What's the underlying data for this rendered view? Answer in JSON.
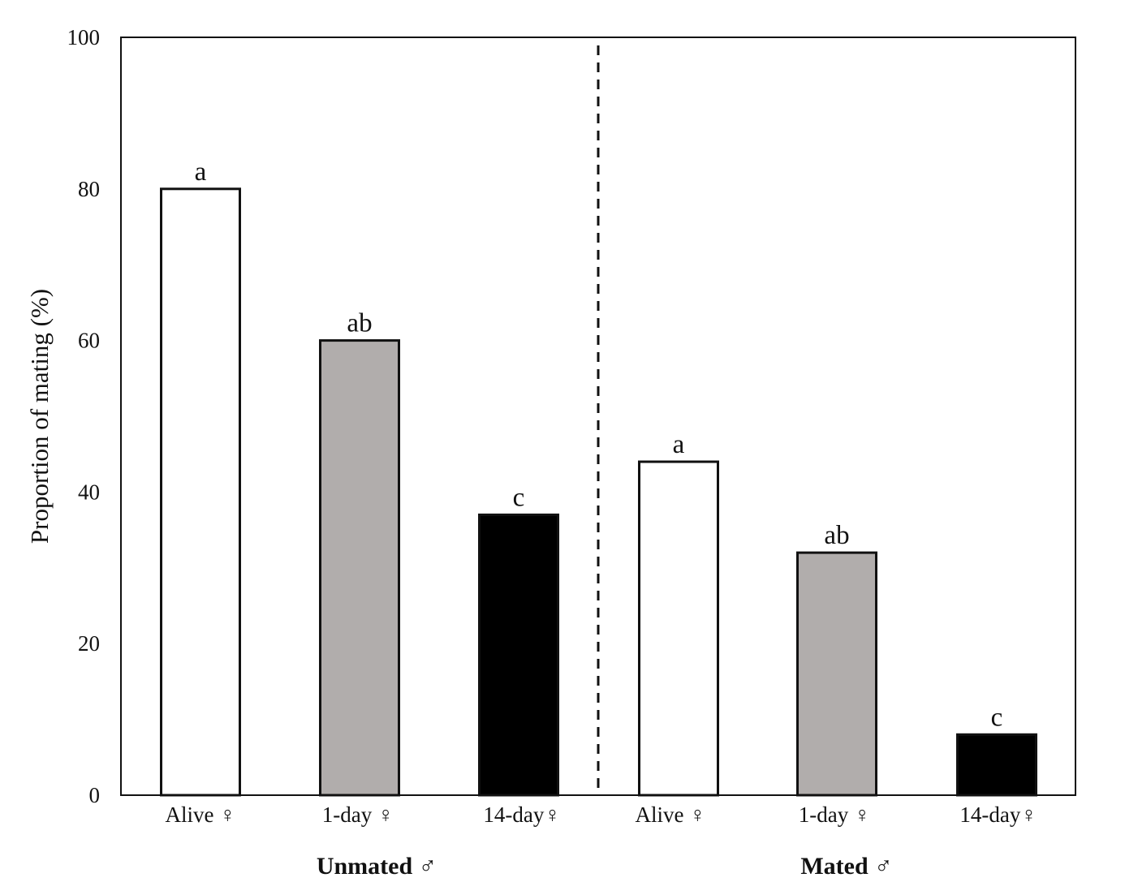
{
  "chart_data": {
    "type": "bar",
    "title": "",
    "xlabel": "",
    "ylabel": "Proportion of mating (%)",
    "ylim": [
      0,
      100
    ],
    "yticks": [
      0,
      20,
      40,
      60,
      80,
      100
    ],
    "grid": false,
    "groups": [
      {
        "name": "Unmated ♂",
        "categories": [
          "Alive ♀",
          "1-day ♀",
          "14-day♀"
        ],
        "values": [
          80,
          60,
          37
        ],
        "significance": [
          "a",
          "ab",
          "c"
        ],
        "colors": [
          "#ffffff",
          "#b1adac",
          "#000000"
        ]
      },
      {
        "name": "Mated ♂",
        "categories": [
          "Alive ♀",
          "1-day ♀",
          "14-day♀"
        ],
        "values": [
          44,
          32,
          8
        ],
        "significance": [
          "a",
          "ab",
          "c"
        ],
        "colors": [
          "#ffffff",
          "#b1adac",
          "#000000"
        ]
      }
    ],
    "group_separator": "dashed"
  }
}
